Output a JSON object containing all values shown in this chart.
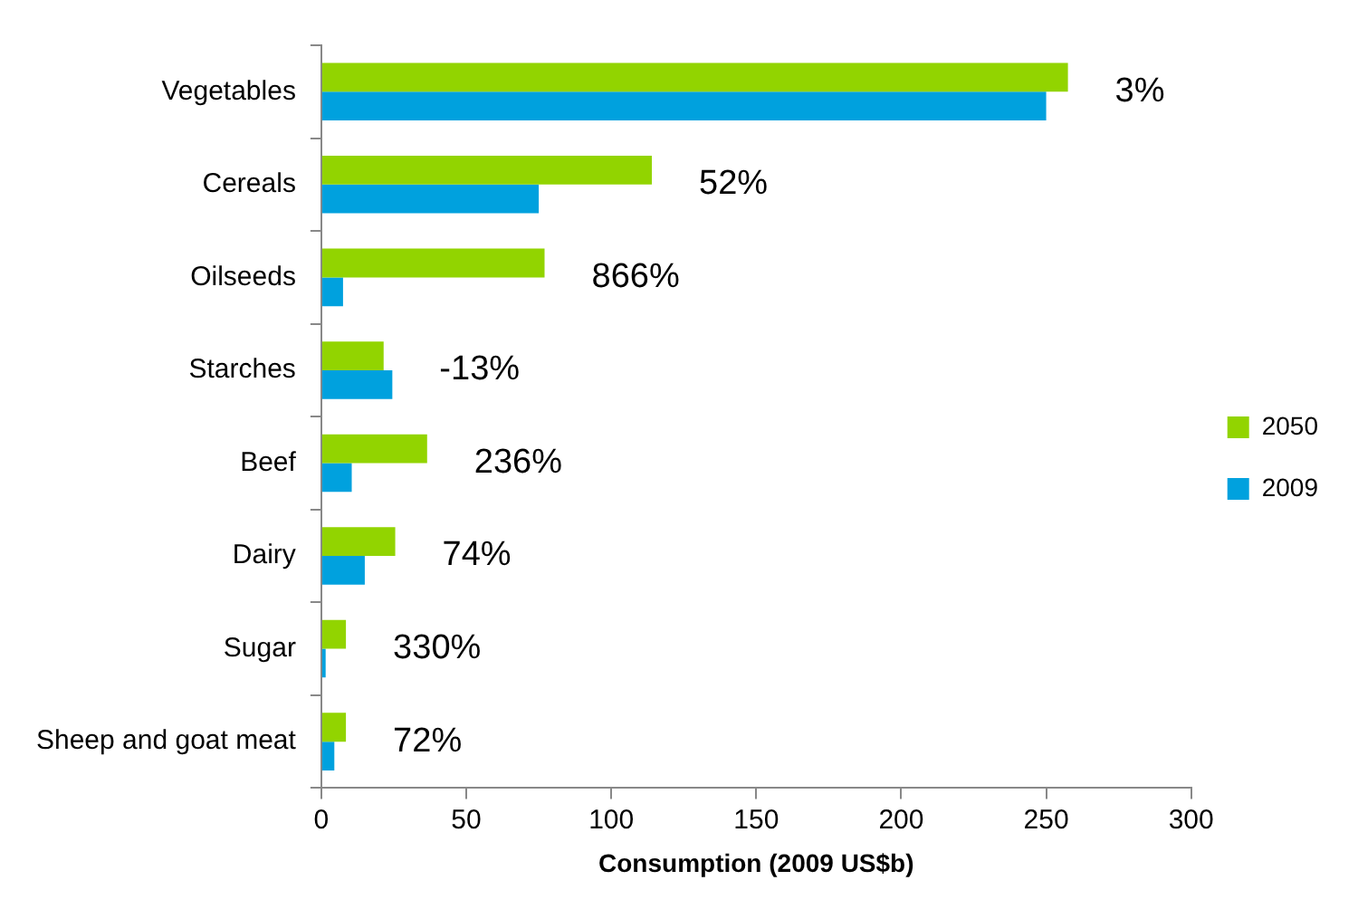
{
  "chart_data": {
    "type": "bar",
    "orientation": "horizontal",
    "xlabel": "Consumption (2009 US$b)",
    "categories": [
      "Vegetables",
      "Cereals",
      "Oilseeds",
      "Starches",
      "Beef",
      "Dairy",
      "Sugar",
      "Sheep and goat meat"
    ],
    "series": [
      {
        "name": "2050",
        "color": "#92d400",
        "values": [
          257.5,
          114,
          77,
          21.5,
          36.5,
          25.5,
          8.5,
          8.5
        ]
      },
      {
        "name": "2009",
        "color": "#00a1de",
        "values": [
          250,
          75,
          7.5,
          24.5,
          10.5,
          15,
          1.5,
          4.5
        ]
      }
    ],
    "xlim": [
      0,
      300
    ],
    "xticks": [
      0,
      50,
      100,
      150,
      200,
      250,
      300
    ],
    "grid": false,
    "legend": "right",
    "annotations": [
      "3%",
      "52%",
      "866%",
      "-13%",
      "236%",
      "74%",
      "330%",
      "72%"
    ]
  }
}
